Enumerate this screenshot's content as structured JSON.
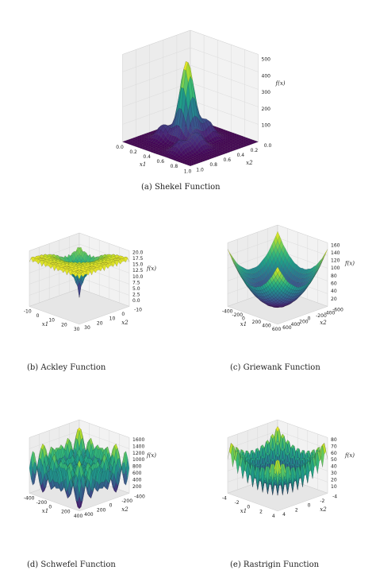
{
  "figure": {
    "panels": [
      {
        "id": "a",
        "caption": "(a) Shekel Function",
        "chart_data": {
          "type": "surface",
          "function": "Shekel",
          "colormap": "viridis",
          "xlabel": "x1",
          "ylabel": "x2",
          "zlabel": "f(x)",
          "xlim": [
            0.0,
            1.0
          ],
          "ylim": [
            0.0,
            1.0
          ],
          "zlim": [
            0,
            500
          ],
          "x_ticks": [
            "0.0",
            "0.2",
            "0.4",
            "0.6",
            "0.8",
            "1.0"
          ],
          "y_ticks": [
            "0.0",
            "0.2",
            "0.4",
            "0.6",
            "0.8",
            "1.0"
          ],
          "z_ticks": [
            "100",
            "200",
            "300",
            "400",
            "500"
          ],
          "grid": true
        }
      },
      {
        "id": "b",
        "caption": "(b) Ackley Function",
        "chart_data": {
          "type": "surface",
          "function": "Ackley",
          "colormap": "viridis",
          "xlabel": "x1",
          "ylabel": "x2",
          "zlabel": "f(x)",
          "xlim": [
            -10,
            30
          ],
          "ylim": [
            -10,
            30
          ],
          "zlim": [
            0,
            20
          ],
          "x_ticks": [
            "-10",
            "0",
            "10",
            "20",
            "30"
          ],
          "y_ticks": [
            "-10",
            "0",
            "10",
            "20",
            "30"
          ],
          "z_ticks": [
            "0.0",
            "2.5",
            "5.0",
            "7.5",
            "10.0",
            "12.5",
            "15.0",
            "17.5",
            "20.0"
          ],
          "grid": true
        }
      },
      {
        "id": "c",
        "caption": "(c) Griewank Function",
        "chart_data": {
          "type": "surface",
          "function": "Griewank",
          "colormap": "viridis",
          "xlabel": "x1",
          "ylabel": "x2",
          "zlabel": "f(x)",
          "xlim": [
            -600,
            600
          ],
          "ylim": [
            -600,
            600
          ],
          "zlim": [
            0,
            160
          ],
          "x_ticks": [
            "-400",
            "-200",
            "0",
            "200",
            "400",
            "600"
          ],
          "y_ticks": [
            "-600",
            "-400",
            "-200",
            "0",
            "200",
            "400",
            "600"
          ],
          "z_ticks": [
            "20",
            "40",
            "60",
            "80",
            "100",
            "120",
            "140",
            "160"
          ],
          "grid": true
        }
      },
      {
        "id": "d",
        "caption": "(d) Schwefel Function",
        "chart_data": {
          "type": "surface",
          "function": "Schwefel",
          "colormap": "viridis",
          "xlabel": "x1",
          "ylabel": "x2",
          "zlabel": "f(x)",
          "xlim": [
            -500,
            500
          ],
          "ylim": [
            -500,
            500
          ],
          "zlim": [
            0,
            1600
          ],
          "x_ticks": [
            "-400",
            "-200",
            "0",
            "200",
            "400"
          ],
          "y_ticks": [
            "-400",
            "-200",
            "0",
            "200",
            "400"
          ],
          "z_ticks": [
            "200",
            "400",
            "600",
            "800",
            "1000",
            "1200",
            "1400",
            "1600"
          ],
          "grid": true
        }
      },
      {
        "id": "e",
        "caption": "(e) Rastrigin Function",
        "chart_data": {
          "type": "surface",
          "function": "Rastrigin",
          "colormap": "viridis",
          "xlabel": "x1",
          "ylabel": "x2",
          "zlabel": "f(x)",
          "xlim": [
            -5,
            5
          ],
          "ylim": [
            -5,
            5
          ],
          "zlim": [
            0,
            80
          ],
          "x_ticks": [
            "-4",
            "-2",
            "0",
            "2",
            "4"
          ],
          "y_ticks": [
            "-4",
            "-2",
            "0",
            "2",
            "4"
          ],
          "z_ticks": [
            "10",
            "20",
            "30",
            "40",
            "50",
            "60",
            "70",
            "80"
          ],
          "grid": true
        }
      }
    ]
  }
}
